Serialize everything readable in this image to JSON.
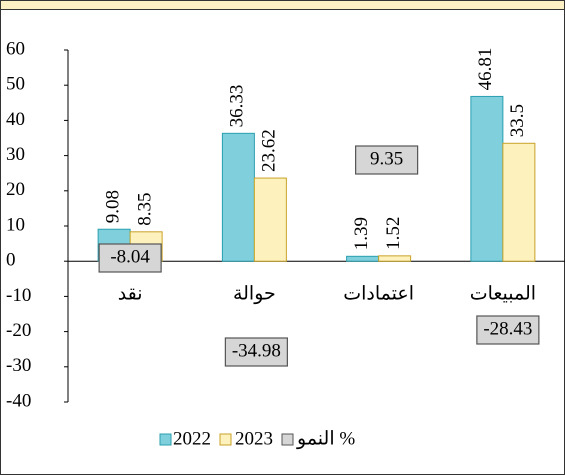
{
  "chart_data": {
    "type": "bar",
    "categories": [
      "نقد",
      "حوالة",
      "اعتمادات",
      "المبيعات"
    ],
    "series": [
      {
        "name": "2022",
        "color": "#7fd0dc",
        "values": [
          9.08,
          36.33,
          1.39,
          46.81
        ]
      },
      {
        "name": "2023",
        "color": "#fdf1bd",
        "values": [
          8.35,
          23.62,
          1.52,
          33.5
        ]
      },
      {
        "name": "النمو %",
        "color": "#d6d6d6",
        "values": [
          -8.04,
          -34.98,
          9.35,
          -28.43
        ]
      }
    ],
    "ylim": [
      -40,
      60
    ],
    "yticks": [
      -40,
      -30,
      -20,
      -10,
      0,
      10,
      20,
      30,
      40,
      50,
      60
    ]
  }
}
